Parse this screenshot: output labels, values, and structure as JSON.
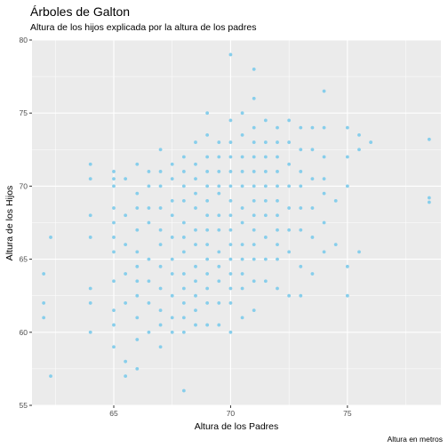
{
  "chart_data": {
    "type": "scatter",
    "title": "Árboles de Galton",
    "subtitle": "Altura de los hijos explicada por la altura de los padres",
    "xlabel": "Altura de los Padres",
    "ylabel": "Altura de los Hijos",
    "caption": "Altura en metros",
    "xlim": [
      61.5,
      79.0
    ],
    "ylim": [
      55.0,
      80.0
    ],
    "x_ticks": [
      65,
      70,
      75
    ],
    "y_ticks": [
      55,
      60,
      65,
      70,
      75,
      80
    ],
    "grid": true,
    "legend": "none",
    "point_color": "#87CEEB",
    "panel_color": "#EBEBEB",
    "gridline_color": "#FFFFFF",
    "x": [
      62,
      62,
      62,
      62.3,
      62.3,
      64,
      64,
      64,
      64,
      64,
      64,
      64,
      65,
      65,
      65,
      65,
      65,
      65,
      65,
      65,
      65,
      65,
      65,
      65.5,
      65.5,
      65.5,
      65.5,
      65.5,
      65.5,
      65.5,
      66,
      66,
      66,
      66,
      66,
      66,
      66,
      66,
      66,
      66,
      66,
      66.5,
      66.5,
      66.5,
      66.5,
      66.5,
      66.5,
      66.5,
      66.5,
      67,
      67,
      67,
      67,
      67,
      67,
      67,
      67,
      67,
      67,
      67,
      67.5,
      67.5,
      67.5,
      67.5,
      67.5,
      67.5,
      67.5,
      67.5,
      67.5,
      67.5,
      68,
      68,
      68,
      68,
      68,
      68,
      68,
      68,
      68,
      68,
      68,
      68,
      68,
      68.5,
      68.5,
      68.5,
      68.5,
      68.5,
      68.5,
      68.5,
      68.5,
      68.5,
      68.5,
      68.5,
      68.5,
      69,
      69,
      69,
      69,
      69,
      69,
      69,
      69,
      69,
      69,
      69,
      69,
      69,
      69,
      69.5,
      69.5,
      69.5,
      69.5,
      69.5,
      69.5,
      69.5,
      69.5,
      69.5,
      69.5,
      69.5,
      69.5,
      70,
      70,
      70,
      70,
      70,
      70,
      70,
      70,
      70,
      70,
      70,
      70,
      70,
      70,
      70,
      70.5,
      70.5,
      70.5,
      70.5,
      70.5,
      70.5,
      70.5,
      70.5,
      70.5,
      70.5,
      70.5,
      70.5,
      71,
      71,
      71,
      71,
      71,
      71,
      71,
      71,
      71,
      71,
      71,
      71,
      71,
      71,
      71.5,
      71.5,
      71.5,
      71.5,
      71.5,
      71.5,
      71.5,
      71.5,
      71.5,
      71.5,
      72,
      72,
      72,
      72,
      72,
      72,
      72,
      72,
      72,
      72,
      72,
      72.5,
      72.5,
      72.5,
      72.5,
      72.5,
      72.5,
      72.5,
      72.5,
      73,
      73,
      73,
      73,
      73,
      73,
      73,
      73,
      73.5,
      73.5,
      73.5,
      73.5,
      73.5,
      73.5,
      74,
      74,
      74,
      74,
      74,
      74,
      74,
      74.5,
      74.5,
      75,
      75,
      75,
      75,
      75,
      75.5,
      75.5,
      75.5,
      76,
      78.5,
      78.5,
      78.5
    ],
    "y": [
      64,
      62,
      61,
      66.5,
      57,
      71.5,
      70.5,
      68,
      66.5,
      63,
      62,
      60,
      71,
      70.5,
      70,
      68.5,
      67.5,
      66.5,
      65.5,
      63.5,
      61.5,
      60.5,
      59,
      70.5,
      68,
      66,
      64,
      62,
      58,
      57,
      71.5,
      69.5,
      68.5,
      67,
      65.5,
      64.5,
      63.5,
      62.5,
      61,
      59.5,
      57.5,
      71,
      70,
      68.5,
      67.5,
      65,
      63.5,
      62,
      60,
      72.5,
      71,
      70,
      68.5,
      67,
      66,
      64.5,
      63,
      61.5,
      60.5,
      59,
      71.5,
      70.5,
      69,
      68,
      66.5,
      65,
      64,
      62.5,
      61,
      60,
      72,
      71,
      70,
      69,
      67.5,
      66.5,
      65.5,
      64,
      63,
      62,
      61,
      60,
      56,
      73,
      71.5,
      70.5,
      69.5,
      68.5,
      67,
      66,
      64.5,
      63.5,
      62.5,
      61.5,
      60.5,
      75,
      73.5,
      72,
      71,
      70,
      69,
      68,
      67,
      66,
      65,
      64,
      63,
      62,
      60.5,
      73,
      72,
      71,
      70,
      69.5,
      68,
      67,
      65.5,
      64.5,
      63.5,
      62,
      60.5,
      79,
      74.5,
      73,
      72,
      71,
      70,
      69,
      68,
      67,
      66,
      65,
      64,
      63,
      62,
      60,
      75,
      73.5,
      72,
      71,
      70,
      68.5,
      67.5,
      66,
      65,
      64,
      63,
      61,
      78,
      76,
      74,
      73,
      72,
      71,
      70,
      69,
      68,
      67,
      66,
      65,
      63.5,
      61.5,
      74.5,
      73,
      72,
      71,
      70,
      69,
      68,
      66.5,
      65,
      63.5,
      74,
      73,
      72,
      71,
      70,
      69,
      68,
      67,
      66,
      65,
      63,
      74.5,
      73,
      71.5,
      70,
      68.5,
      67,
      65.5,
      62.5,
      74,
      72.5,
      71,
      70,
      68.5,
      67,
      64.5,
      62.5,
      74,
      72.5,
      70.5,
      68.5,
      66.5,
      64,
      76.5,
      74,
      72,
      70.5,
      69.5,
      67.5,
      65.5,
      69,
      66,
      74,
      72,
      70,
      64.5,
      62.5,
      73.5,
      72.5,
      65.5,
      73,
      73.2,
      69.2,
      68.9
    ]
  }
}
